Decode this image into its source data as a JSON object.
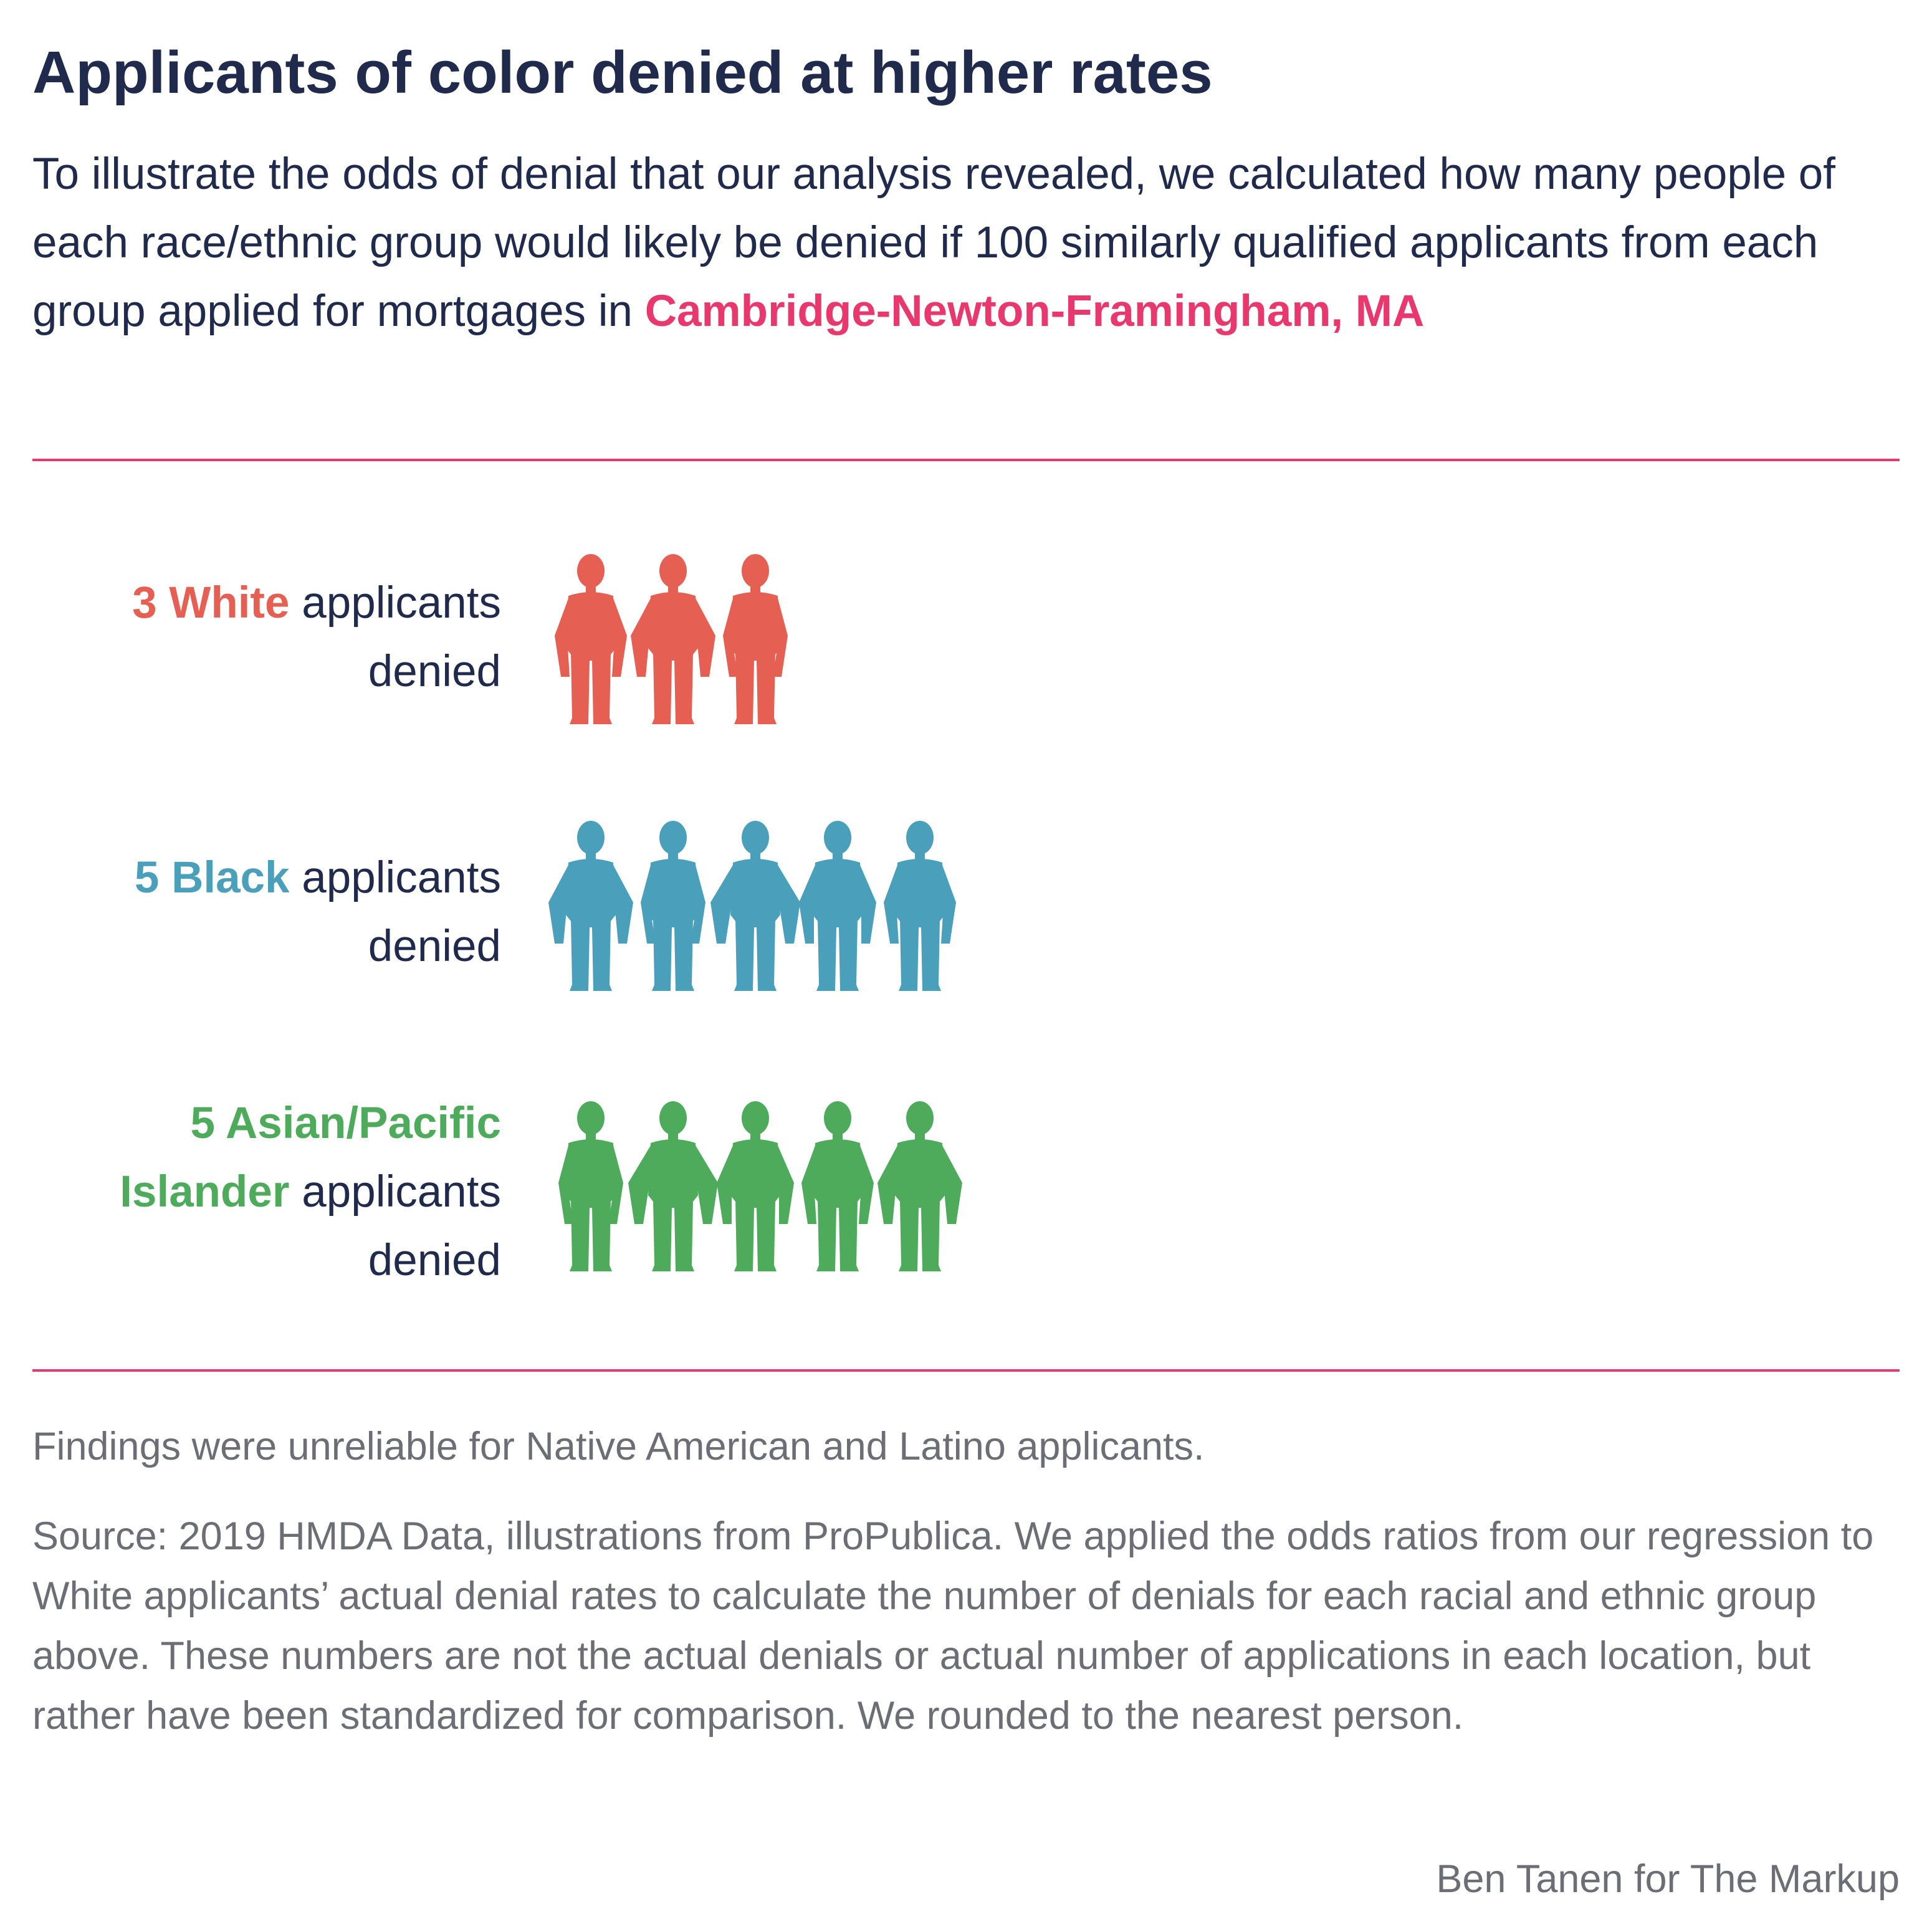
{
  "title": "Applicants of color denied at higher rates",
  "intro": {
    "text": "To illustrate the odds of denial that our analysis revealed, we calculated how many people of each race/ethnic group would likely be denied if 100 similarly qualified applicants from each group applied for mortgages in ",
    "location": "Cambridge-Newton-Framingham, MA"
  },
  "chart_data": {
    "type": "pictogram",
    "unit": "applicants denied per 100 similarly qualified applicants",
    "groups": [
      {
        "name": "White",
        "lead": "3 White",
        "rest": "applicants denied",
        "value": 3,
        "color": "#e65f53"
      },
      {
        "name": "Black",
        "lead": "5 Black",
        "rest": "applicants denied",
        "value": 5,
        "color": "#4a9fbb"
      },
      {
        "name": "Asian/Pacific Islander",
        "lead": "5 Asian/Pacific Islander",
        "rest": "applicants denied",
        "value": 5,
        "color": "#4eab5b"
      }
    ]
  },
  "notes": {
    "unreliable": "Findings were unreliable for Native American and Latino applicants.",
    "source": "Source: 2019 HMDA Data, illustrations from ProPublica. We applied the odds ratios from our regression to White applicants’ actual denial rates to calculate the number of denials for each racial and ethnic group above. These numbers are not the actual denials or actual number of applications in each location, but rather have been standardized for comparison. We rounded to the nearest person.",
    "credit": "Ben Tanen for The Markup"
  },
  "colors": {
    "title": "#1f2a4d",
    "accent": "#e8386d",
    "muted": "#6b6e74"
  },
  "icon_names": [
    "person-silhouette-icon"
  ]
}
